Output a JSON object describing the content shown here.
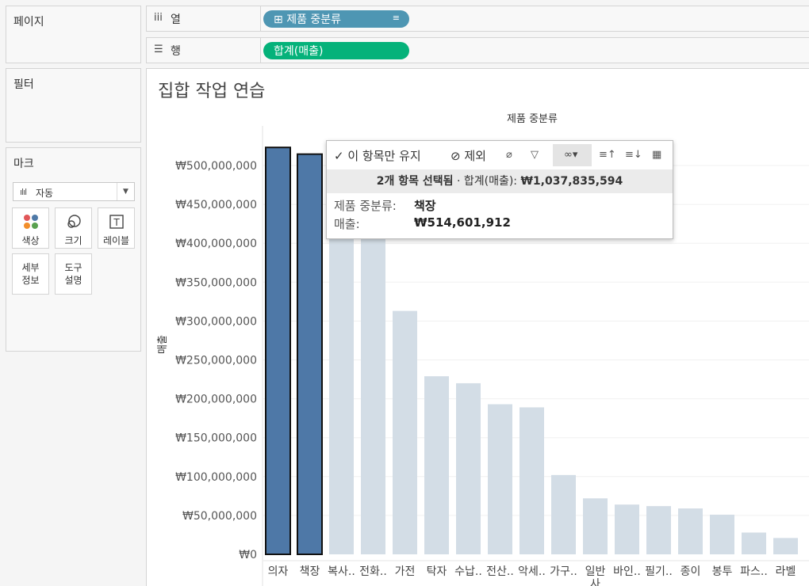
{
  "panels": {
    "pages": "페이지",
    "filters": "필터",
    "marks": "마크"
  },
  "marks": {
    "type_label": "자동",
    "buttons": {
      "color": "색상",
      "size": "크기",
      "label": "레이블",
      "detail": "세부\n정보",
      "tooltip": "도구\n설명"
    }
  },
  "shelves": {
    "columns_label": "열",
    "columns_pill": "제품 중분류",
    "rows_label": "행",
    "rows_pill": "합계(매출)"
  },
  "sheet": {
    "title": "집합 작업 연습"
  },
  "colors": {
    "selected_bar": "#4e78a7",
    "unselected_bar": "#d3dde6",
    "columns_pill": "#4e96b3",
    "rows_pill": "#05b27a"
  },
  "tooltip": {
    "keep_only": "✓ 이 항목만 유지",
    "exclude": "⊘ 제외",
    "summary_count": "2개 항목 선택됨",
    "summary_sep": "·",
    "summary_label": "합계(매출):",
    "summary_value": "₩1,037,835,594",
    "field_label": "제품 중분류:",
    "field_value": "책장",
    "measure_label": "매출:",
    "measure_value": "₩514,601,912"
  },
  "chart_data": {
    "type": "bar",
    "title": "제품 중분류",
    "ylabel": "매출",
    "ylim": [
      0,
      510000000
    ],
    "yticks": [
      0,
      50000000,
      100000000,
      150000000,
      200000000,
      250000000,
      300000000,
      350000000,
      400000000,
      450000000,
      500000000
    ],
    "ytick_labels": [
      "₩0",
      "₩50,000,000",
      "₩100,000,000",
      "₩150,000,000",
      "₩200,000,000",
      "₩250,000,000",
      "₩300,000,000",
      "₩350,000,000",
      "₩400,000,000",
      "₩450,000,000",
      "₩500,000,000"
    ],
    "categories": [
      "의자",
      "책장",
      "복사..",
      "전화..",
      "가전",
      "탁자",
      "수납..",
      "전산..",
      "악세..",
      "가구..",
      "일반\n사",
      "바인..",
      "필기..",
      "종이",
      "봉투",
      "파스..",
      "라벨"
    ],
    "values": [
      523234000,
      514601912,
      427000000,
      425000000,
      313000000,
      229000000,
      220000000,
      193000000,
      189000000,
      102000000,
      72000000,
      64000000,
      62000000,
      59000000,
      51000000,
      28000000,
      21000000
    ],
    "selected": [
      true,
      true,
      false,
      false,
      false,
      false,
      false,
      false,
      false,
      false,
      false,
      false,
      false,
      false,
      false,
      false,
      false
    ]
  }
}
